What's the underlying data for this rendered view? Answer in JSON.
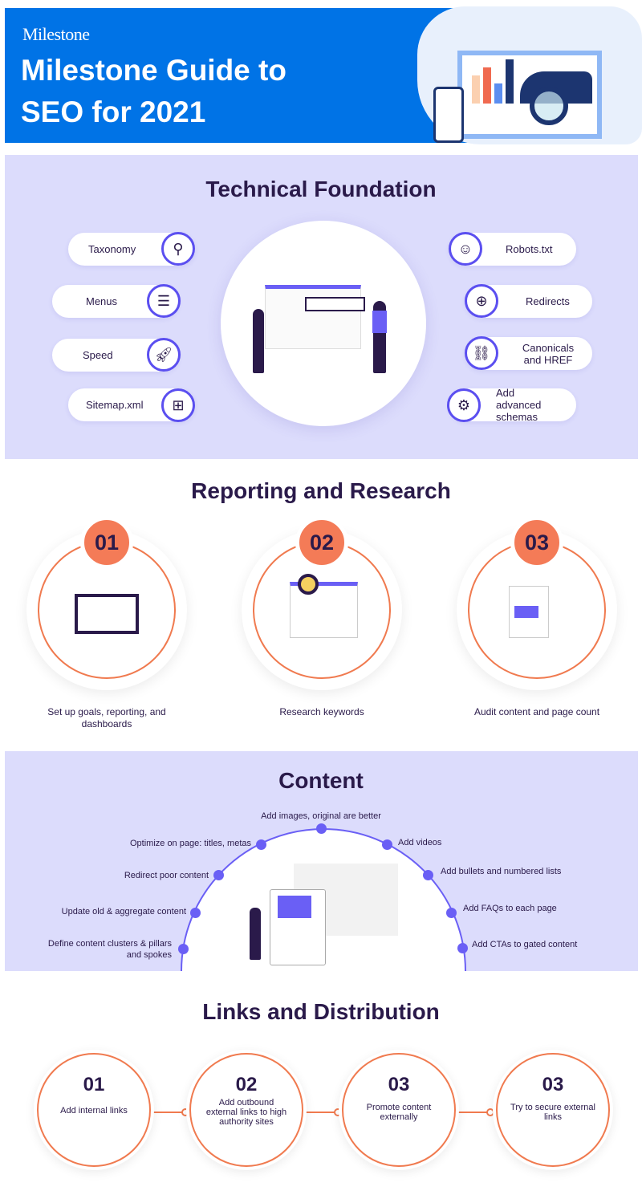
{
  "header": {
    "logo": "Milestone",
    "title_line1": "Milestone Guide to",
    "title_line2": "SEO for 2021",
    "color": "#0073e6"
  },
  "technical": {
    "title": "Technical Foundation",
    "left": [
      {
        "label": "Taxonomy",
        "icon": "taxonomy-icon"
      },
      {
        "label": "Menus",
        "icon": "menu-list-icon"
      },
      {
        "label": "Speed",
        "icon": "rocket-icon"
      },
      {
        "label": "Sitemap.xml",
        "icon": "sitemap-icon"
      }
    ],
    "right": [
      {
        "label": "Robots.txt",
        "icon": "robot-icon"
      },
      {
        "label": "Redirects",
        "icon": "redirect-globe-icon"
      },
      {
        "label": "Canonicals and HREF",
        "icon": "link-icon"
      },
      {
        "label": "Add advanced schemas",
        "icon": "schema-icon"
      }
    ]
  },
  "reporting": {
    "title": "Reporting and Research",
    "steps": [
      {
        "num": "01",
        "caption": "Set up goals, reporting, and dashboards"
      },
      {
        "num": "02",
        "caption": "Research keywords"
      },
      {
        "num": "03",
        "caption": "Audit content and page count"
      }
    ]
  },
  "content": {
    "title": "Content",
    "top": "Add images, original are better",
    "left": [
      "Optimize on page: titles, metas",
      "Redirect poor content",
      "Update old & aggregate content",
      "Define content clusters & pillars and spokes"
    ],
    "right": [
      "Add videos",
      "Add bullets and numbered lists",
      "Add FAQs to each page",
      "Add CTAs to gated content"
    ]
  },
  "links": {
    "title": "Links and Distribution",
    "steps": [
      {
        "num": "01",
        "text": "Add internal links"
      },
      {
        "num": "02",
        "text": "Add outbound external links to high authority sites"
      },
      {
        "num": "03",
        "text": "Promote content externally"
      },
      {
        "num": "03",
        "text": "Try to secure external links"
      }
    ]
  },
  "colors": {
    "accent": "#5b4ff0",
    "orange": "#f47b57",
    "lavender": "#dcdcfc",
    "dark": "#2a1a4a"
  }
}
